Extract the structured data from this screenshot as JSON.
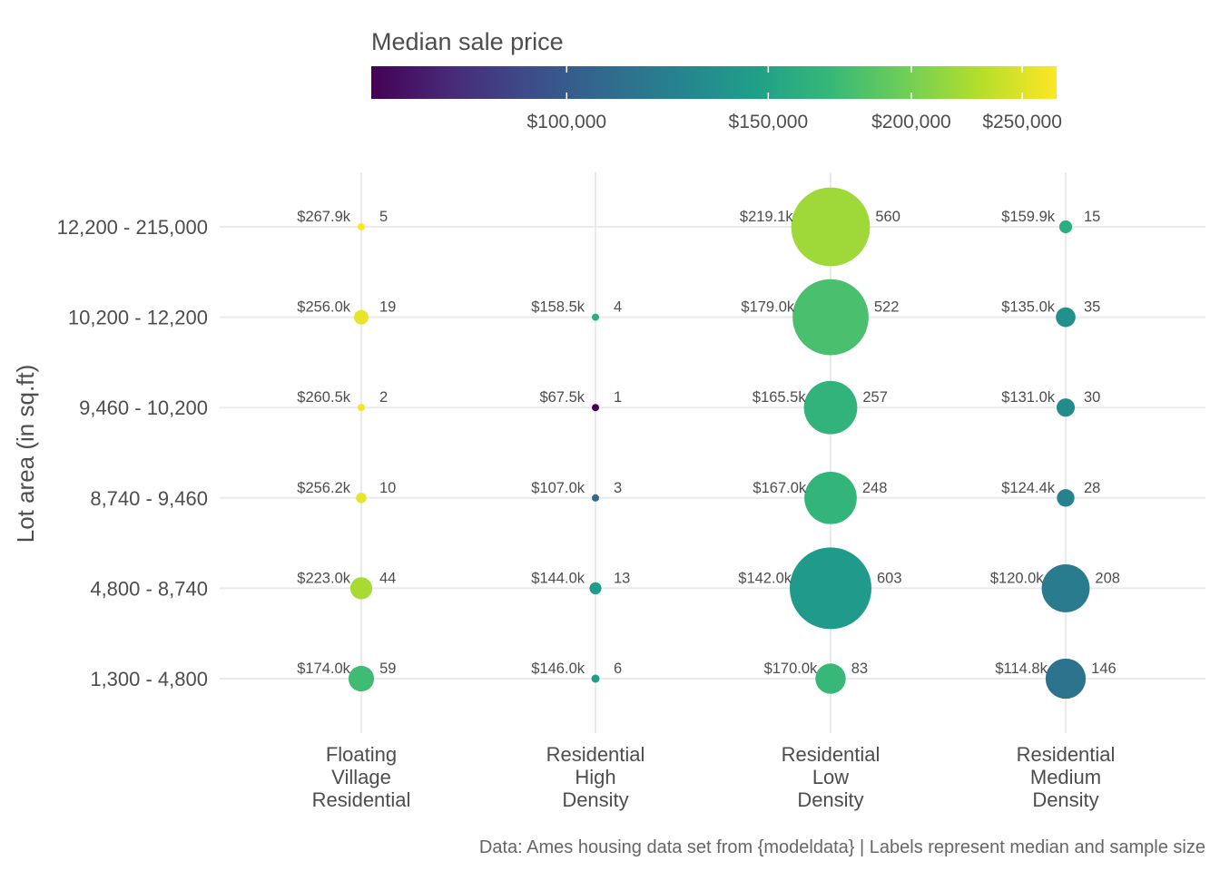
{
  "chart_data": {
    "type": "scatter",
    "xlabel": "",
    "ylabel": "Lot area (in sq.ft)",
    "x_categories": [
      "Floating Village Residential",
      "Residential High Density",
      "Residential Low Density",
      "Residential Medium Density"
    ],
    "x_tick_lines": [
      [
        "Floating",
        "Village",
        "Residential"
      ],
      [
        "Residential",
        "High",
        "Density"
      ],
      [
        "Residential",
        "Low",
        "Density"
      ],
      [
        "Residential",
        "Medium",
        "Density"
      ]
    ],
    "y_categories": [
      "1,300 - 4,800",
      "4,800 - 8,740",
      "8,740 - 9,460",
      "9,460 - 10,200",
      "10,200 - 12,200",
      "12,200 - 215,000"
    ],
    "points": [
      {
        "x": "Floating Village Residential",
        "y": "12,200 - 215,000",
        "median": 267900,
        "price_label": "$267.9k",
        "n": 5
      },
      {
        "x": "Floating Village Residential",
        "y": "10,200 - 12,200",
        "median": 256000,
        "price_label": "$256.0k",
        "n": 19
      },
      {
        "x": "Floating Village Residential",
        "y": "9,460 - 10,200",
        "median": 260500,
        "price_label": "$260.5k",
        "n": 2
      },
      {
        "x": "Floating Village Residential",
        "y": "8,740 - 9,460",
        "median": 256200,
        "price_label": "$256.2k",
        "n": 10
      },
      {
        "x": "Floating Village Residential",
        "y": "4,800 - 8,740",
        "median": 223000,
        "price_label": "$223.0k",
        "n": 44
      },
      {
        "x": "Floating Village Residential",
        "y": "1,300 - 4,800",
        "median": 174000,
        "price_label": "$174.0k",
        "n": 59
      },
      {
        "x": "Residential High Density",
        "y": "10,200 - 12,200",
        "median": 158500,
        "price_label": "$158.5k",
        "n": 4
      },
      {
        "x": "Residential High Density",
        "y": "9,460 - 10,200",
        "median": 67500,
        "price_label": "$67.5k",
        "n": 1
      },
      {
        "x": "Residential High Density",
        "y": "8,740 - 9,460",
        "median": 107000,
        "price_label": "$107.0k",
        "n": 3
      },
      {
        "x": "Residential High Density",
        "y": "4,800 - 8,740",
        "median": 144000,
        "price_label": "$144.0k",
        "n": 13
      },
      {
        "x": "Residential High Density",
        "y": "1,300 - 4,800",
        "median": 146000,
        "price_label": "$146.0k",
        "n": 6
      },
      {
        "x": "Residential Low Density",
        "y": "12,200 - 215,000",
        "median": 219100,
        "price_label": "$219.1k",
        "n": 560
      },
      {
        "x": "Residential Low Density",
        "y": "10,200 - 12,200",
        "median": 179000,
        "price_label": "$179.0k",
        "n": 522
      },
      {
        "x": "Residential Low Density",
        "y": "9,460 - 10,200",
        "median": 165500,
        "price_label": "$165.5k",
        "n": 257
      },
      {
        "x": "Residential Low Density",
        "y": "8,740 - 9,460",
        "median": 167000,
        "price_label": "$167.0k",
        "n": 248
      },
      {
        "x": "Residential Low Density",
        "y": "4,800 - 8,740",
        "median": 142000,
        "price_label": "$142.0k",
        "n": 603
      },
      {
        "x": "Residential Low Density",
        "y": "1,300 - 4,800",
        "median": 170000,
        "price_label": "$170.0k",
        "n": 83
      },
      {
        "x": "Residential Medium Density",
        "y": "12,200 - 215,000",
        "median": 159900,
        "price_label": "$159.9k",
        "n": 15
      },
      {
        "x": "Residential Medium Density",
        "y": "10,200 - 12,200",
        "median": 135000,
        "price_label": "$135.0k",
        "n": 35
      },
      {
        "x": "Residential Medium Density",
        "y": "9,460 - 10,200",
        "median": 131000,
        "price_label": "$131.0k",
        "n": 30
      },
      {
        "x": "Residential Medium Density",
        "y": "8,740 - 9,460",
        "median": 124400,
        "price_label": "$124.4k",
        "n": 28
      },
      {
        "x": "Residential Medium Density",
        "y": "4,800 - 8,740",
        "median": 120000,
        "price_label": "$120.0k",
        "n": 208
      },
      {
        "x": "Residential Medium Density",
        "y": "1,300 - 4,800",
        "median": 114800,
        "price_label": "$114.8k",
        "n": 146
      }
    ],
    "legend": {
      "title": "Median sale price",
      "position": "top",
      "scale": "log",
      "range": [
        67500,
        267900
      ],
      "ticks": [
        {
          "value": 100000,
          "label": "$100,000"
        },
        {
          "value": 150000,
          "label": "$150,000"
        },
        {
          "value": 200000,
          "label": "$200,000"
        },
        {
          "value": 250000,
          "label": "$250,000"
        }
      ],
      "palette": [
        "#440154",
        "#482878",
        "#3e4a89",
        "#31688e",
        "#26828e",
        "#1f9e89",
        "#35b779",
        "#6ece58",
        "#b5de2b",
        "#fde725"
      ]
    },
    "caption": "Data: Ames housing data set from {modeldata} | Labels represent median and sample size",
    "grid": true
  }
}
